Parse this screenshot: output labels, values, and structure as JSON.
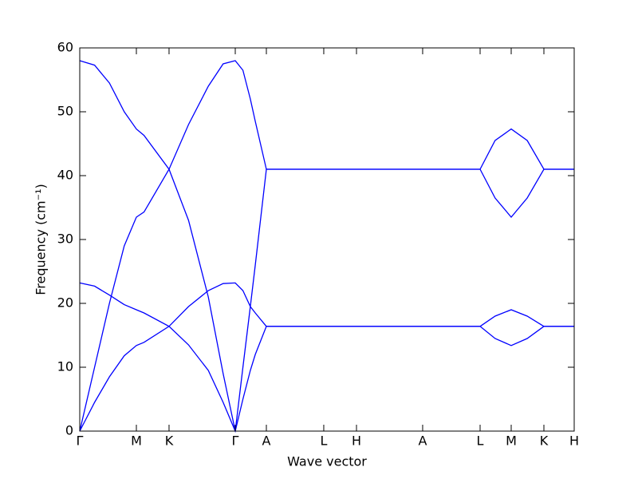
{
  "chart_data": {
    "type": "line",
    "xlabel": "Wave vector",
    "ylabel": "Frequency (cm⁻¹)",
    "x": [
      0,
      0.03,
      0.06,
      0.09,
      0.1145,
      0.13,
      0.1806,
      0.22,
      0.26,
      0.29,
      0.3145,
      0.33,
      0.345,
      0.355,
      0.3774,
      0.8097,
      0.84,
      0.8726,
      0.905,
      0.9387,
      1.0
    ],
    "series": [
      {
        "color": "#0000ff",
        "values": [
          58,
          57.3,
          54.5,
          50,
          47.3,
          46.3,
          41,
          33,
          21,
          9,
          0,
          10,
          19.5,
          26,
          41,
          41,
          45.5,
          47.3,
          45.5,
          41,
          41
        ]
      },
      {
        "color": "#0000ff",
        "values": [
          0,
          10,
          20,
          29,
          33.5,
          34.3,
          41,
          48,
          54,
          57.5,
          58,
          56.5,
          52,
          48.5,
          41,
          41,
          36.5,
          33.5,
          36.5,
          41,
          41
        ]
      },
      {
        "color": "#0000ff",
        "values": [
          23.2,
          22.7,
          21.3,
          19.8,
          19,
          18.5,
          16.4,
          13.5,
          9.5,
          4.5,
          0,
          5,
          9.5,
          12,
          16.4,
          16.4,
          18,
          19,
          18,
          16.4,
          16.4
        ]
      },
      {
        "color": "#0000ff",
        "values": [
          0,
          4.5,
          8.5,
          11.8,
          13.4,
          13.9,
          16.4,
          19.5,
          22,
          23.1,
          23.2,
          22,
          19.5,
          18.5,
          16.4,
          16.4,
          14.5,
          13.4,
          14.5,
          16.4,
          16.4
        ]
      }
    ],
    "xlim": [
      0,
      1.0
    ],
    "xticks": [
      {
        "value": 0,
        "label": "Γ"
      },
      {
        "value": 0.1145,
        "label": "M"
      },
      {
        "value": 0.1806,
        "label": "K"
      },
      {
        "value": 0.3145,
        "label": "Γ"
      },
      {
        "value": 0.3774,
        "label": "A"
      },
      {
        "value": 0.4935,
        "label": "L"
      },
      {
        "value": 0.5597,
        "label": "H"
      },
      {
        "value": 0.6935,
        "label": "A"
      },
      {
        "value": 0.8097,
        "label": "L"
      },
      {
        "value": 0.8726,
        "label": "M"
      },
      {
        "value": 0.9387,
        "label": "K"
      },
      {
        "value": 1.0,
        "label": "H"
      }
    ],
    "ylim": [
      0,
      60
    ],
    "yticks": [
      0,
      10,
      20,
      30,
      40,
      50,
      60
    ]
  }
}
